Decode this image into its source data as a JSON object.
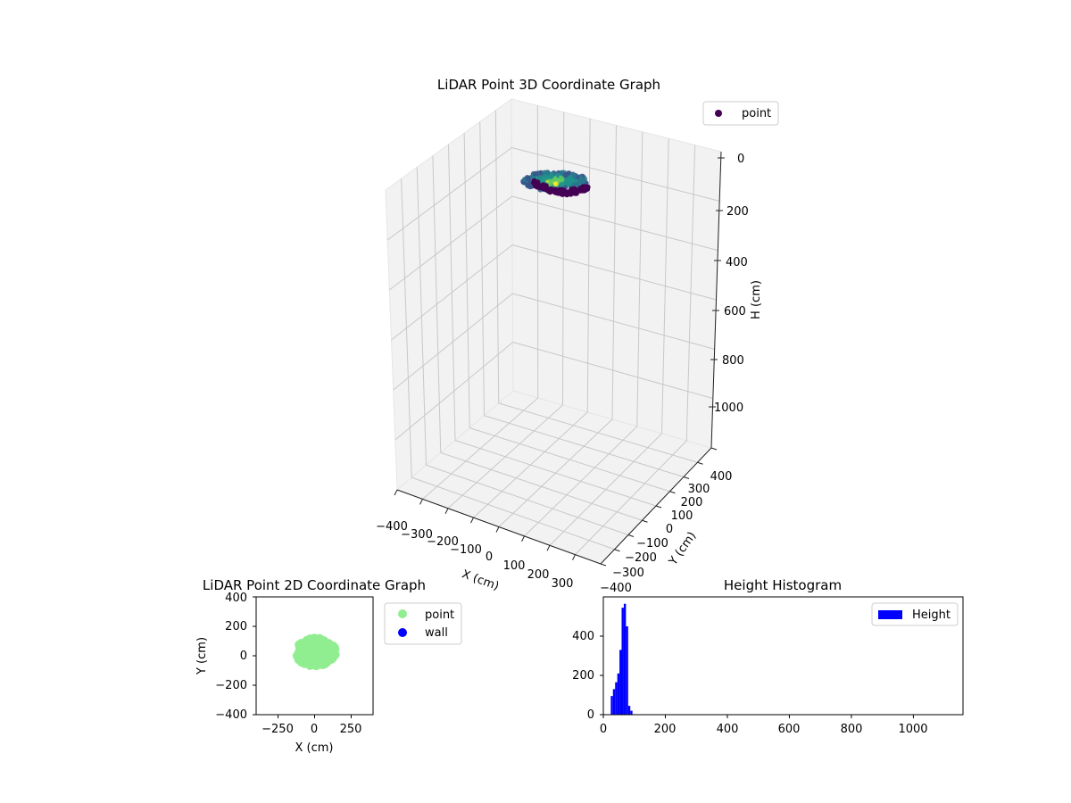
{
  "colors": {
    "background": "#ffffff",
    "pane": "#f2f2f2",
    "grid": "#b0b0b0",
    "point_3d_legend": "#440154",
    "point_2d": "#90ee90",
    "wall": "#0000ff",
    "histogram": "#0000ff",
    "viridis_low": "#440154",
    "viridis_mid": "#21918c",
    "viridis_high": "#fde725"
  },
  "chart_data": [
    {
      "type": "scatter",
      "projection": "3d",
      "title": "LiDAR Point 3D Coordinate Graph",
      "xlabel": "X (cm)",
      "ylabel": "Y (cm)",
      "zlabel": "H (cm)",
      "xlim": [
        -400,
        400
      ],
      "ylim": [
        -400,
        400
      ],
      "zlim": [
        0,
        1100
      ],
      "z_inverted": true,
      "x_ticks": [
        "−400",
        "−300",
        "−200",
        "−100",
        "0",
        "100",
        "200",
        "300"
      ],
      "y_ticks": [
        "−400",
        "−300",
        "−200",
        "−100",
        "0",
        "100",
        "200",
        "300",
        "400"
      ],
      "z_ticks": [
        "0",
        "200",
        "400",
        "600",
        "800",
        "1000"
      ],
      "colormap": "viridis",
      "legend": {
        "location": "upper right",
        "entries": [
          "point"
        ]
      },
      "grid": true
    },
    {
      "type": "scatter",
      "title": "LiDAR Point 2D Coordinate Graph",
      "xlabel": "X (cm)",
      "ylabel": "Y (cm)",
      "xlim": [
        -400,
        400
      ],
      "ylim": [
        -400,
        400
      ],
      "x_ticks": [
        "−250",
        "0",
        "250"
      ],
      "y_ticks": [
        "−400",
        "−200",
        "0",
        "200",
        "400"
      ],
      "series": [
        {
          "name": "point",
          "color": "#90ee90",
          "cluster": {
            "x_center": 0,
            "y_center": 25,
            "x_range": [
              -160,
              150
            ],
            "y_range": [
              -90,
              140
            ]
          }
        },
        {
          "name": "wall",
          "color": "#0000ff",
          "values": []
        }
      ],
      "legend": {
        "location": "outside upper right",
        "entries": [
          "point",
          "wall"
        ]
      },
      "grid": false
    },
    {
      "type": "bar",
      "subtype": "histogram",
      "title": "Height Histogram",
      "xlabel": "",
      "ylabel": "",
      "xlim": [
        0,
        1160
      ],
      "ylim": [
        0,
        600
      ],
      "x_ticks": [
        "0",
        "200",
        "400",
        "600",
        "800",
        "1000"
      ],
      "y_ticks": [
        "0",
        "200",
        "400"
      ],
      "bin_width": 7,
      "bins": [
        {
          "x": 24,
          "count": 95
        },
        {
          "x": 31,
          "count": 130
        },
        {
          "x": 38,
          "count": 165
        },
        {
          "x": 45,
          "count": 210
        },
        {
          "x": 52,
          "count": 330
        },
        {
          "x": 59,
          "count": 545
        },
        {
          "x": 66,
          "count": 565
        },
        {
          "x": 73,
          "count": 450
        },
        {
          "x": 80,
          "count": 45
        },
        {
          "x": 87,
          "count": 20
        }
      ],
      "legend": {
        "location": "upper right",
        "entries": [
          "Height"
        ]
      },
      "grid": false
    }
  ]
}
